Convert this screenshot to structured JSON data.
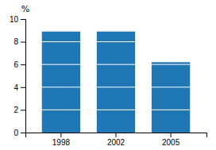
{
  "chart_data": {
    "type": "bar",
    "categories": [
      "1998",
      "2002",
      "2005"
    ],
    "values": [
      8.9,
      8.9,
      6.2
    ],
    "ylabel": "%",
    "ylim": [
      0,
      10
    ],
    "yticks": [
      0,
      2,
      4,
      6,
      8,
      10
    ],
    "grid": false
  }
}
